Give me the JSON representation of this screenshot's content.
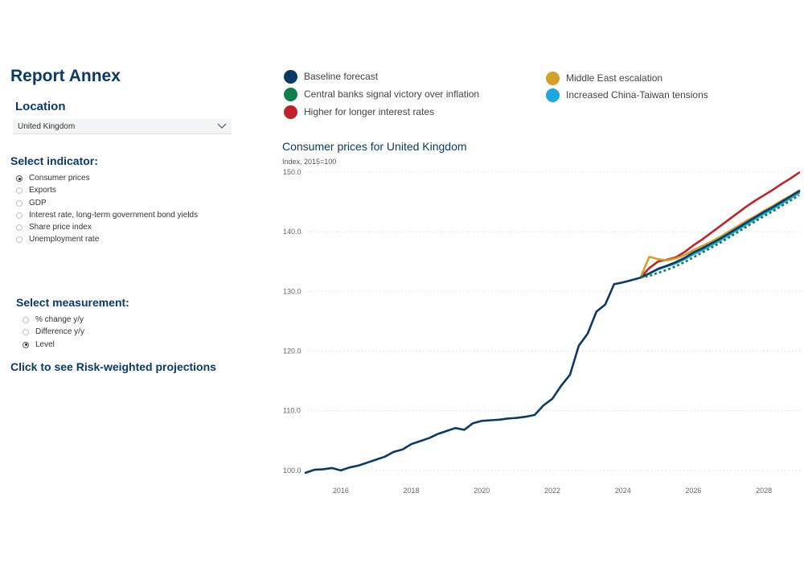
{
  "sidebar": {
    "title": "Report Annex",
    "location": {
      "label": "Location",
      "selected": "United Kingdom"
    },
    "indicator": {
      "label": "Select indicator:",
      "options": [
        "Consumer prices",
        "Exports",
        "GDP",
        "Interest rate, long-term government bond yields",
        "Share price index",
        "Unemployment rate"
      ],
      "selected_index": 0
    },
    "measurement": {
      "label": "Select measurement:",
      "options": [
        "% change y/y",
        "Difference y/y",
        "Level"
      ],
      "selected_index": 2
    },
    "risk_link": "Click to see Risk-weighted projections"
  },
  "legend": [
    {
      "label": "Baseline forecast",
      "color": "#0b3a67"
    },
    {
      "label": "Central banks signal victory over inflation",
      "color": "#0e8048"
    },
    {
      "label": "Higher for longer interest rates",
      "color": "#c1232b"
    },
    {
      "label": "Middle East escalation",
      "color": "#d4a02a"
    },
    {
      "label": "Increased China-Taiwan tensions",
      "color": "#1aa8df"
    }
  ],
  "chart_data": {
    "type": "line",
    "title": "Consumer prices for United Kingdom",
    "subtitle": "Index, 2015=100",
    "xlabel": "",
    "ylabel": "Index, 2015=100",
    "xlim": [
      2015.0,
      2029.0
    ],
    "ylim": [
      98.5,
      152.0
    ],
    "y_ticks": [
      100,
      110,
      120,
      130,
      140,
      150
    ],
    "y_tick_labels": [
      "100.0",
      "110.0",
      "120.0",
      "130.0",
      "140.0",
      "150.0"
    ],
    "x_ticks": [
      2016,
      2018,
      2020,
      2022,
      2024,
      2026,
      2028
    ],
    "x_tick_labels": [
      "2016",
      "2018",
      "2020",
      "2022",
      "2024",
      "2026",
      "2028"
    ],
    "grid": true,
    "series": [
      {
        "name": "Baseline forecast",
        "color": "#0b3a67",
        "dash": false,
        "points": [
          [
            2015.0,
            99.6
          ],
          [
            2015.25,
            100.1
          ],
          [
            2015.5,
            100.2
          ],
          [
            2015.75,
            100.4
          ],
          [
            2016.0,
            100.0
          ],
          [
            2016.25,
            100.5
          ],
          [
            2016.5,
            100.8
          ],
          [
            2016.75,
            101.3
          ],
          [
            2017.0,
            101.8
          ],
          [
            2017.25,
            102.3
          ],
          [
            2017.5,
            103.1
          ],
          [
            2017.75,
            103.5
          ],
          [
            2018.0,
            104.4
          ],
          [
            2018.25,
            104.9
          ],
          [
            2018.5,
            105.4
          ],
          [
            2018.75,
            106.1
          ],
          [
            2019.0,
            106.6
          ],
          [
            2019.25,
            107.1
          ],
          [
            2019.5,
            106.8
          ],
          [
            2019.75,
            107.9
          ],
          [
            2020.0,
            108.3
          ],
          [
            2020.25,
            108.4
          ],
          [
            2020.5,
            108.5
          ],
          [
            2020.75,
            108.7
          ],
          [
            2021.0,
            108.8
          ],
          [
            2021.25,
            109.0
          ],
          [
            2021.5,
            109.3
          ],
          [
            2021.75,
            110.9
          ],
          [
            2022.0,
            112.0
          ],
          [
            2022.25,
            114.2
          ],
          [
            2022.5,
            116.0
          ],
          [
            2022.75,
            120.9
          ],
          [
            2023.0,
            122.9
          ],
          [
            2023.25,
            126.6
          ],
          [
            2023.5,
            127.8
          ],
          [
            2023.75,
            131.2
          ],
          [
            2024.0,
            131.5
          ],
          [
            2024.25,
            131.9
          ],
          [
            2024.5,
            132.3
          ],
          [
            2024.75,
            133.0
          ],
          [
            2025.0,
            133.8
          ],
          [
            2025.25,
            134.3
          ],
          [
            2025.5,
            134.9
          ],
          [
            2025.75,
            135.6
          ],
          [
            2026.0,
            136.5
          ],
          [
            2026.25,
            137.2
          ],
          [
            2026.5,
            138.0
          ],
          [
            2026.75,
            138.8
          ],
          [
            2027.0,
            139.7
          ],
          [
            2027.25,
            140.6
          ],
          [
            2027.5,
            141.5
          ],
          [
            2027.75,
            142.4
          ],
          [
            2028.0,
            143.3
          ],
          [
            2028.25,
            144.1
          ],
          [
            2028.5,
            145.0
          ],
          [
            2028.75,
            145.9
          ],
          [
            2029.0,
            146.8
          ]
        ]
      },
      {
        "name": "Central banks signal victory over inflation",
        "color": "#0e8048",
        "dash": true,
        "points": [
          [
            2024.5,
            132.3
          ],
          [
            2024.75,
            132.6
          ],
          [
            2025.0,
            133.1
          ],
          [
            2025.25,
            133.6
          ],
          [
            2025.5,
            134.2
          ],
          [
            2025.75,
            134.9
          ],
          [
            2026.0,
            135.7
          ],
          [
            2026.25,
            136.5
          ],
          [
            2026.5,
            137.3
          ],
          [
            2026.75,
            138.1
          ],
          [
            2027.0,
            139.0
          ],
          [
            2027.25,
            139.9
          ],
          [
            2027.5,
            140.8
          ],
          [
            2027.75,
            141.7
          ],
          [
            2028.0,
            142.6
          ],
          [
            2028.25,
            143.4
          ],
          [
            2028.5,
            144.3
          ],
          [
            2028.75,
            145.2
          ],
          [
            2029.0,
            146.1
          ]
        ]
      },
      {
        "name": "Higher for longer interest rates",
        "color": "#c1232b",
        "dash": false,
        "points": [
          [
            2024.5,
            132.3
          ],
          [
            2024.75,
            133.9
          ],
          [
            2025.0,
            135.0
          ],
          [
            2025.25,
            135.3
          ],
          [
            2025.5,
            135.7
          ],
          [
            2025.75,
            136.6
          ],
          [
            2026.0,
            137.7
          ],
          [
            2026.25,
            138.7
          ],
          [
            2026.5,
            139.8
          ],
          [
            2026.75,
            140.9
          ],
          [
            2027.0,
            142.0
          ],
          [
            2027.25,
            143.1
          ],
          [
            2027.5,
            144.2
          ],
          [
            2027.75,
            145.2
          ],
          [
            2028.0,
            146.1
          ],
          [
            2028.25,
            147.0
          ],
          [
            2028.5,
            148.0
          ],
          [
            2028.75,
            148.9
          ],
          [
            2029.0,
            149.9
          ]
        ]
      },
      {
        "name": "Middle East escalation",
        "color": "#d4a02a",
        "dash": false,
        "points": [
          [
            2024.5,
            132.3
          ],
          [
            2024.75,
            135.8
          ],
          [
            2025.0,
            135.4
          ],
          [
            2025.25,
            135.2
          ],
          [
            2025.5,
            135.5
          ],
          [
            2025.75,
            136.1
          ],
          [
            2026.0,
            136.9
          ],
          [
            2026.25,
            137.6
          ],
          [
            2026.5,
            138.3
          ],
          [
            2026.75,
            139.1
          ],
          [
            2027.0,
            140.0
          ],
          [
            2027.25,
            140.9
          ],
          [
            2027.5,
            141.8
          ],
          [
            2027.75,
            142.6
          ],
          [
            2028.0,
            143.5
          ],
          [
            2028.25,
            144.3
          ],
          [
            2028.5,
            145.2
          ],
          [
            2028.75,
            146.0
          ],
          [
            2029.0,
            146.9
          ]
        ]
      },
      {
        "name": "Increased China-Taiwan tensions",
        "color": "#1aa8df",
        "dash": false,
        "points": [
          [
            2024.5,
            132.3
          ],
          [
            2024.75,
            133.0
          ],
          [
            2025.0,
            133.7
          ],
          [
            2025.25,
            134.2
          ],
          [
            2025.5,
            134.7
          ],
          [
            2025.75,
            135.4
          ],
          [
            2026.0,
            136.2
          ],
          [
            2026.25,
            136.9
          ],
          [
            2026.5,
            137.7
          ],
          [
            2026.75,
            138.5
          ],
          [
            2027.0,
            139.4
          ],
          [
            2027.25,
            140.3
          ],
          [
            2027.5,
            141.2
          ],
          [
            2027.75,
            142.1
          ],
          [
            2028.0,
            143.0
          ],
          [
            2028.25,
            143.8
          ],
          [
            2028.5,
            144.7
          ],
          [
            2028.75,
            145.6
          ],
          [
            2029.0,
            146.5
          ]
        ]
      }
    ]
  }
}
